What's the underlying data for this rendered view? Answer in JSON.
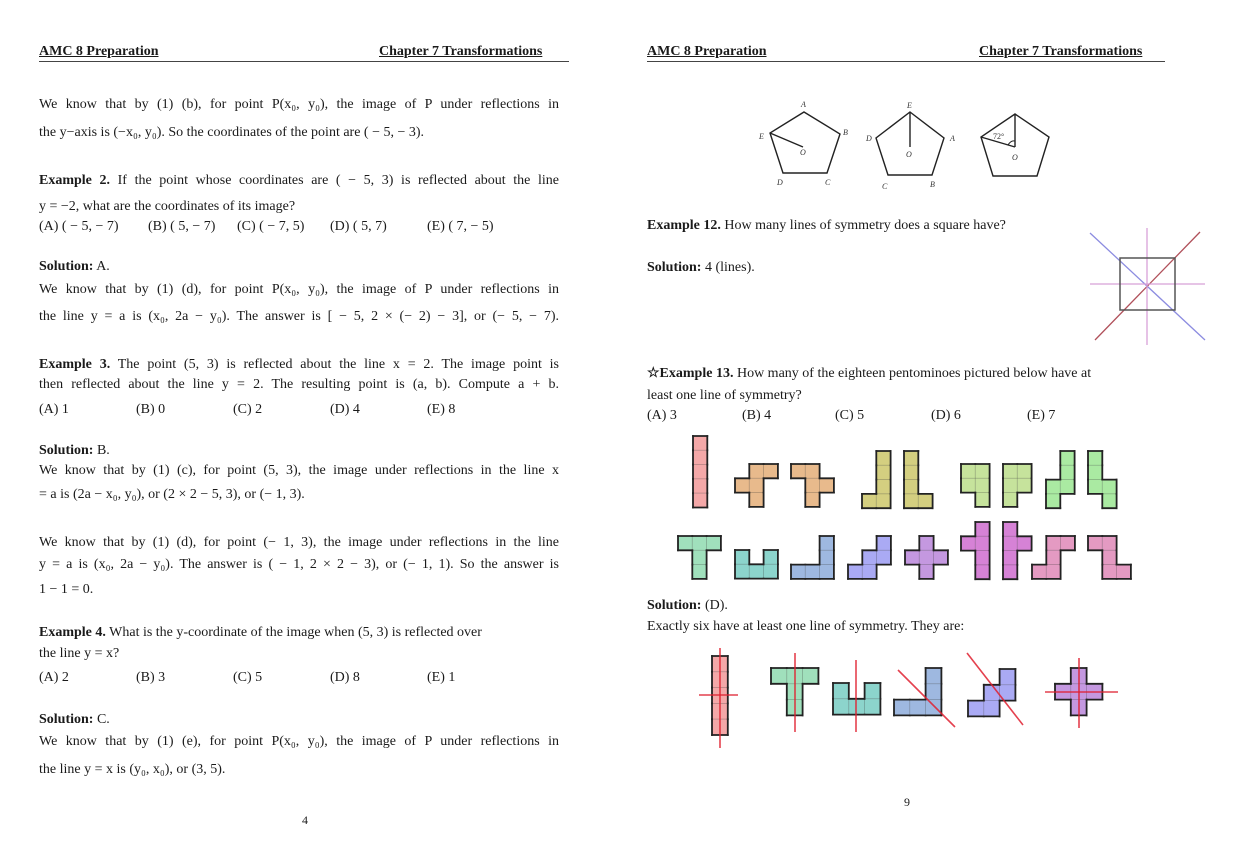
{
  "left": {
    "header_left": "AMC 8 Preparation",
    "header_right": "Chapter 7 Transformations",
    "lines": [
      {
        "text": "We know that by (1) (b), for point P(x₀, y₀), the image of P under reflections in"
      },
      {
        "text": "the y−axis is (−x₀, y₀). So the coordinates of the point are ( − 5, − 3)."
      },
      {
        "bold": "Example 2.",
        "text": " If the point whose coordinates are ( − 5, 3) is reflected about the line"
      },
      {
        "text": "y = −2, what are the coordinates of its image?"
      },
      {
        "bold": "Solution:",
        "text": " A."
      },
      {
        "text": "We know that by (1) (d), for point P(x₀, y₀), the image of P under reflections in"
      },
      {
        "text": "the line y = a is (x₀, 2a − y₀). The answer is [ − 5, 2 × (− 2) − 3], or (− 5, − 7)."
      },
      {
        "bold": "Example 3.",
        "text": " The point (5, 3) is reflected about the line x = 2. The image point is"
      },
      {
        "text": "then reflected about the line y = 2. The resulting point is (a, b). Compute a + b."
      },
      {
        "bold": "Solution:",
        "text": " B."
      },
      {
        "text": "We know that by (1) (c), for point (5, 3), the image under reflections in the line x"
      },
      {
        "text": "= a is (2a − x₀, y₀), or (2 × 2 − 5, 3), or (− 1, 3)."
      },
      {
        "text": "We know that by (1) (d), for point (− 1, 3), the image under reflections in the line"
      },
      {
        "text": "y = a is (x₀, 2a − y₀). The answer is ( − 1, 2 × 2 − 3), or (− 1, 1). So the answer is"
      },
      {
        "text": "1 − 1 = 0."
      },
      {
        "bold": "Example 4.",
        "text": " What is the y-coordinate of the image when (5, 3) is reflected over"
      },
      {
        "text": "the line y = x?"
      },
      {
        "bold": "Solution:",
        "text": " C."
      },
      {
        "text": "We know that by (1) (e), for point P(x₀, y₀), the image of P under reflections in"
      },
      {
        "text": "the line y = x is (y₀, x₀), or (3, 5)."
      }
    ],
    "choices_ex2": [
      "(A) ( − 5, − 7)",
      "(B) ( 5, − 7)",
      "(C) ( − 7, 5)",
      "(D) ( 5, 7)",
      "(E) ( 7, − 5)"
    ],
    "choices_ex3": [
      "(A) 1",
      "(B) 0",
      "(C) 2",
      "(D) 4",
      "(E) 8"
    ],
    "choices_ex4": [
      "(A) 2",
      "(B) 3",
      "(C) 5",
      "(D) 8",
      "(E) 1"
    ],
    "page_number": "4"
  },
  "right": {
    "header_left": "AMC 8 Preparation",
    "header_right": "Chapter 7 Transformations",
    "pentagon_labels": {
      "p1": [
        "A",
        "B",
        "C",
        "D",
        "E",
        "O"
      ],
      "p2": [
        "E",
        "A",
        "B",
        "C",
        "D",
        "O"
      ],
      "p3_angle": "72°",
      "p3_center": "O"
    },
    "ex12": {
      "bold": "Example 12.",
      "text": " How many lines of symmetry does a square have?"
    },
    "sol12": {
      "bold": "Solution:",
      "text": " 4 (lines)."
    },
    "ex13": {
      "bold": "☆Example 13.",
      "text": " How many of the eighteen pentominoes pictured below have at",
      "text2": "least one line of symmetry?"
    },
    "choices_ex13": [
      "(A) 3",
      "(B) 4",
      "(C) 5",
      "(D) 6",
      "(E) 7"
    ],
    "sol13": {
      "bold": "Solution:",
      "text": " (D).",
      "text2": "Exactly six have at least one line of symmetry. They are:"
    },
    "page_number": "9",
    "symmetry_line_colors": {
      "blue": "#8c8ce0",
      "red": "#b0505a",
      "pink": "#d8a0d8",
      "solution_red": "#e02030"
    },
    "pentominoes": [
      {
        "name": "I",
        "color": "#f4a8a8",
        "cells": [
          [
            0,
            0
          ],
          [
            0,
            1
          ],
          [
            0,
            2
          ],
          [
            0,
            3
          ],
          [
            0,
            4
          ]
        ]
      },
      {
        "name": "F",
        "color": "#e8ba8c",
        "cells": [
          [
            1,
            0
          ],
          [
            2,
            0
          ],
          [
            0,
            1
          ],
          [
            1,
            1
          ],
          [
            1,
            2
          ]
        ]
      },
      {
        "name": "F-mirror",
        "color": "#e8ba8c",
        "cells": [
          [
            0,
            0
          ],
          [
            1,
            0
          ],
          [
            1,
            1
          ],
          [
            2,
            1
          ],
          [
            1,
            2
          ]
        ]
      },
      {
        "name": "L-mirror",
        "color": "#d4cf80",
        "cells": [
          [
            1,
            0
          ],
          [
            1,
            1
          ],
          [
            1,
            2
          ],
          [
            0,
            3
          ],
          [
            1,
            3
          ]
        ]
      },
      {
        "name": "L",
        "color": "#d4cf80",
        "cells": [
          [
            0,
            0
          ],
          [
            0,
            1
          ],
          [
            0,
            2
          ],
          [
            0,
            3
          ],
          [
            1,
            3
          ]
        ]
      },
      {
        "name": "P-mirror",
        "color": "#c6e39c",
        "cells": [
          [
            0,
            0
          ],
          [
            1,
            0
          ],
          [
            0,
            1
          ],
          [
            1,
            1
          ],
          [
            1,
            2
          ]
        ]
      },
      {
        "name": "P",
        "color": "#c6e39c",
        "cells": [
          [
            0,
            0
          ],
          [
            1,
            0
          ],
          [
            0,
            1
          ],
          [
            1,
            1
          ],
          [
            0,
            2
          ]
        ]
      },
      {
        "name": "N",
        "color": "#aaeaa2",
        "cells": [
          [
            1,
            0
          ],
          [
            1,
            1
          ],
          [
            0,
            2
          ],
          [
            1,
            2
          ],
          [
            0,
            3
          ]
        ]
      },
      {
        "name": "N-mirror",
        "color": "#aaeaa2",
        "cells": [
          [
            0,
            0
          ],
          [
            0,
            1
          ],
          [
            0,
            2
          ],
          [
            1,
            2
          ],
          [
            1,
            3
          ]
        ]
      },
      {
        "name": "T",
        "color": "#a0e0bc",
        "cells": [
          [
            0,
            0
          ],
          [
            1,
            0
          ],
          [
            2,
            0
          ],
          [
            1,
            1
          ],
          [
            1,
            2
          ]
        ]
      },
      {
        "name": "U",
        "color": "#8cd4cc",
        "cells": [
          [
            0,
            0
          ],
          [
            2,
            0
          ],
          [
            0,
            1
          ],
          [
            1,
            1
          ],
          [
            2,
            1
          ]
        ]
      },
      {
        "name": "V",
        "color": "#9eb8e0",
        "cells": [
          [
            2,
            0
          ],
          [
            2,
            1
          ],
          [
            0,
            2
          ],
          [
            1,
            2
          ],
          [
            2,
            2
          ]
        ]
      },
      {
        "name": "W",
        "color": "#aaaaf4",
        "cells": [
          [
            2,
            0
          ],
          [
            1,
            1
          ],
          [
            2,
            1
          ],
          [
            0,
            2
          ],
          [
            1,
            2
          ]
        ]
      },
      {
        "name": "X",
        "color": "#c498e0",
        "cells": [
          [
            1,
            0
          ],
          [
            0,
            1
          ],
          [
            1,
            1
          ],
          [
            2,
            1
          ],
          [
            1,
            2
          ]
        ]
      },
      {
        "name": "Y",
        "color": "#d682d6",
        "cells": [
          [
            1,
            0
          ],
          [
            0,
            1
          ],
          [
            1,
            1
          ],
          [
            1,
            2
          ],
          [
            1,
            3
          ]
        ]
      },
      {
        "name": "Y-mirror",
        "color": "#d682d6",
        "cells": [
          [
            0,
            0
          ],
          [
            0,
            1
          ],
          [
            1,
            1
          ],
          [
            0,
            2
          ],
          [
            0,
            3
          ]
        ]
      },
      {
        "name": "Z",
        "color": "#e49ac2",
        "cells": [
          [
            1,
            0
          ],
          [
            2,
            0
          ],
          [
            1,
            1
          ],
          [
            0,
            2
          ],
          [
            1,
            2
          ]
        ]
      },
      {
        "name": "Z-mirror",
        "color": "#e49ac2",
        "cells": [
          [
            0,
            0
          ],
          [
            1,
            0
          ],
          [
            1,
            1
          ],
          [
            1,
            2
          ],
          [
            2,
            2
          ]
        ]
      }
    ],
    "symmetric_pentominoes": [
      {
        "name": "I",
        "color": "#f4a8a8",
        "cells": [
          [
            0,
            0
          ],
          [
            0,
            1
          ],
          [
            0,
            2
          ],
          [
            0,
            3
          ],
          [
            0,
            4
          ]
        ]
      },
      {
        "name": "T",
        "color": "#a0e0bc",
        "cells": [
          [
            0,
            0
          ],
          [
            1,
            0
          ],
          [
            2,
            0
          ],
          [
            1,
            1
          ],
          [
            1,
            2
          ]
        ]
      },
      {
        "name": "U",
        "color": "#8cd4cc",
        "cells": [
          [
            0,
            0
          ],
          [
            2,
            0
          ],
          [
            0,
            1
          ],
          [
            1,
            1
          ],
          [
            2,
            1
          ]
        ]
      },
      {
        "name": "V",
        "color": "#9eb8e0",
        "cells": [
          [
            2,
            0
          ],
          [
            2,
            1
          ],
          [
            0,
            2
          ],
          [
            1,
            2
          ],
          [
            2,
            2
          ]
        ]
      },
      {
        "name": "W",
        "color": "#aaaaf4",
        "cells": [
          [
            2,
            0
          ],
          [
            1,
            1
          ],
          [
            2,
            1
          ],
          [
            0,
            2
          ],
          [
            1,
            2
          ]
        ]
      },
      {
        "name": "X",
        "color": "#c498e0",
        "cells": [
          [
            1,
            0
          ],
          [
            0,
            1
          ],
          [
            1,
            1
          ],
          [
            2,
            1
          ],
          [
            1,
            2
          ]
        ]
      }
    ]
  }
}
